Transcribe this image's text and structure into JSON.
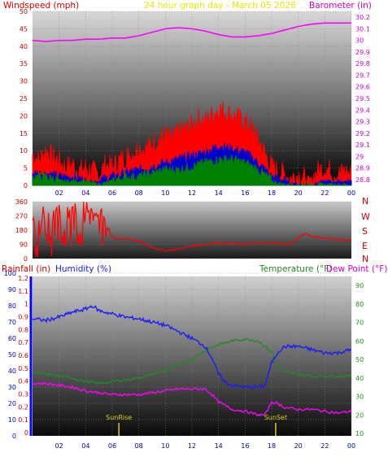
{
  "colors": {
    "windspeed": "#ff0000",
    "gust_mid": "#0000cc",
    "avg": "#008000",
    "barometer": "#ff00ff",
    "winddir": "#ff0000",
    "humidity": "#1a1aff",
    "temperature": "#228b22",
    "dewpoint": "#ff00ff",
    "rainfall": "#0000ff",
    "title": "#ffff00",
    "sun": "#d4d400"
  },
  "chart_data": [
    {
      "type": "line",
      "title": "24 hour graph day - March 05 2026",
      "left_axis_label": "Windspeed (mph)",
      "right_axis_label": "Barometer (in)",
      "x_ticks": [
        "02",
        "04",
        "06",
        "08",
        "10",
        "12",
        "14",
        "16",
        "18",
        "20",
        "22",
        "00"
      ],
      "left_ticks": [
        "0",
        "5",
        "10",
        "15",
        "20",
        "25",
        "30",
        "35",
        "40",
        "45",
        "50"
      ],
      "left_ylim": [
        0,
        50
      ],
      "right_ticks": [
        "28.8",
        "28.9",
        "29",
        "29.1",
        "29.2",
        "29.3",
        "29.4",
        "29.5",
        "29.6",
        "29.7",
        "29.8",
        "29.9",
        "30",
        "30.1",
        "30.2"
      ],
      "right_ylim": [
        28.75,
        30.25
      ],
      "xlim": [
        0,
        24
      ],
      "series": [
        {
          "name": "Windspeed (mph)",
          "axis": "left",
          "x": [
            0,
            0.5,
            1,
            1.5,
            2,
            2.5,
            3,
            3.5,
            4,
            4.5,
            5,
            5.5,
            6,
            6.5,
            7,
            7.5,
            8,
            8.5,
            9,
            9.5,
            10,
            10.5,
            11,
            11.5,
            12,
            12.5,
            13,
            13.5,
            14,
            14.5,
            15,
            15.5,
            16,
            16.5,
            17,
            17.5,
            18,
            18.5,
            19,
            19.5,
            20,
            20.5,
            21,
            21.5,
            22,
            22.5,
            23,
            23.5,
            24
          ],
          "values": [
            8,
            6,
            9,
            7,
            6,
            4,
            5,
            3,
            4,
            3,
            2,
            5,
            4,
            6,
            7,
            8,
            10,
            9,
            11,
            12,
            13,
            12,
            14,
            15,
            16,
            18,
            17,
            19,
            21,
            20,
            19,
            18,
            17,
            15,
            12,
            8,
            4,
            3,
            2,
            1,
            2,
            1,
            1,
            3,
            4,
            3,
            2,
            3,
            2
          ]
        },
        {
          "name": "Gust mid",
          "axis": "left",
          "x": [
            0,
            1,
            2,
            3,
            4,
            5,
            6,
            7,
            8,
            9,
            10,
            11,
            12,
            13,
            14,
            15,
            16,
            17,
            18,
            19,
            20,
            21,
            22,
            23,
            24
          ],
          "values": [
            3,
            3,
            2,
            2,
            1,
            1,
            2,
            3,
            4,
            5,
            6,
            7,
            8,
            9,
            11,
            10,
            9,
            6,
            2,
            1,
            0,
            0,
            1,
            1,
            1
          ]
        },
        {
          "name": "Average wind",
          "axis": "left",
          "x": [
            0,
            1,
            2,
            3,
            4,
            5,
            6,
            7,
            8,
            9,
            10,
            11,
            12,
            13,
            14,
            15,
            16,
            17,
            18,
            19,
            20,
            21,
            22,
            23,
            24
          ],
          "values": [
            2,
            2,
            1,
            1,
            1,
            0,
            1,
            2,
            2,
            3,
            4,
            4,
            5,
            6,
            7,
            7,
            6,
            4,
            1,
            0,
            0,
            0,
            0,
            0,
            0
          ]
        },
        {
          "name": "Barometer (in)",
          "axis": "right",
          "x": [
            0,
            1,
            2,
            3,
            4,
            5,
            6,
            7,
            8,
            9,
            10,
            11,
            12,
            13,
            14,
            15,
            16,
            17,
            18,
            19,
            20,
            21,
            22,
            23,
            24
          ],
          "values": [
            30,
            29.99,
            30,
            30,
            30.01,
            30.01,
            30.02,
            30.02,
            30.04,
            30.07,
            30.1,
            30.11,
            30.1,
            30.08,
            30.05,
            30.03,
            30.03,
            30.04,
            30.06,
            30.09,
            30.12,
            30.14,
            30.15,
            30.15,
            30.15
          ]
        }
      ]
    },
    {
      "type": "line",
      "right_labels": [
        "N",
        "W",
        "S",
        "E",
        "N"
      ],
      "left_ticks": [
        "0",
        "90",
        "180",
        "270",
        "360"
      ],
      "ylim": [
        0,
        360
      ],
      "xlim": [
        0,
        24
      ],
      "series": [
        {
          "name": "Wind direction",
          "x": [
            0,
            0.4,
            0.8,
            1.2,
            1.6,
            2,
            2.4,
            2.8,
            3.2,
            3.6,
            4,
            4.4,
            4.8,
            5.2,
            5.6,
            6,
            6.5,
            7,
            8,
            9,
            10,
            11,
            12,
            13,
            14,
            15,
            16,
            17,
            18,
            18.5,
            19,
            19.5,
            20,
            20.5,
            21,
            22,
            23,
            24
          ],
          "values": [
            320,
            10,
            330,
            40,
            300,
            340,
            20,
            310,
            350,
            30,
            280,
            320,
            260,
            310,
            200,
            140,
            120,
            130,
            110,
            70,
            50,
            60,
            80,
            90,
            100,
            95,
            90,
            100,
            95,
            100,
            90,
            95,
            130,
            160,
            140,
            130,
            120,
            115
          ]
        }
      ]
    },
    {
      "type": "line",
      "rainfall_label": "Rainfall (in)",
      "humidity_label": "Humidity (%)",
      "temperature_label": "Temperature (°F)",
      "dewpoint_label": "Dew Point (°F)",
      "humidity_ticks": [
        "0",
        "10",
        "20",
        "30",
        "40",
        "50",
        "60",
        "70",
        "80",
        "90",
        "100"
      ],
      "rain_ticks": [
        "0",
        "0.1",
        "0.2",
        "0.3",
        "0.4",
        "0.5",
        "0.6",
        "0.7",
        "0.8",
        "0.9",
        "1",
        "1.1",
        "1.2"
      ],
      "temp_ticks": [
        "10",
        "20",
        "30",
        "40",
        "50",
        "60",
        "70",
        "80",
        "90"
      ],
      "x_ticks": [
        "02",
        "04",
        "06",
        "08",
        "10",
        "12",
        "14",
        "16",
        "18",
        "20",
        "22",
        "00"
      ],
      "xlim": [
        0,
        24
      ],
      "humidity_ylim": [
        0,
        100
      ],
      "temp_ylim": [
        10,
        90
      ],
      "annotations": [
        {
          "text": "SunRise",
          "x": 6.5
        },
        {
          "text": "SunSet",
          "x": 18.3
        }
      ],
      "series": [
        {
          "name": "Humidity (%)",
          "axis": "humidity",
          "x": [
            0,
            1,
            2,
            3,
            4,
            4.5,
            5,
            6,
            7,
            8,
            9,
            10,
            11,
            12,
            13,
            13.5,
            14,
            14.5,
            15,
            16,
            17,
            17.5,
            18,
            18.5,
            19,
            20,
            21,
            22,
            23,
            24
          ],
          "values": [
            72,
            71,
            73,
            76,
            78,
            80,
            77,
            75,
            73,
            72,
            70,
            68,
            64,
            60,
            55,
            48,
            38,
            33,
            31,
            30,
            30,
            31,
            45,
            52,
            55,
            55,
            53,
            51,
            51,
            53
          ]
        },
        {
          "name": "Temperature (°F)",
          "axis": "temp",
          "x": [
            0,
            1,
            2,
            3,
            4,
            5,
            6,
            7,
            8,
            9,
            10,
            11,
            12,
            13,
            14,
            15,
            16,
            17,
            18,
            18.5,
            19,
            20,
            21,
            22,
            23,
            24
          ],
          "values": [
            43,
            42,
            41,
            40,
            38,
            37,
            38,
            39,
            40,
            42,
            44,
            47,
            50,
            55,
            58,
            60,
            61,
            60,
            54,
            46,
            43,
            42,
            41,
            41,
            41,
            41
          ]
        },
        {
          "name": "Dew Point (°F)",
          "axis": "temp",
          "x": [
            0,
            1,
            2,
            3,
            4,
            5,
            6,
            7,
            8,
            9,
            10,
            11,
            12,
            13,
            13.5,
            14,
            15,
            16,
            17,
            17.5,
            18,
            18.5,
            19,
            20,
            21,
            22,
            23,
            24
          ],
          "values": [
            37,
            37,
            36,
            35,
            33,
            32,
            31,
            31,
            31,
            32,
            33,
            34,
            34,
            34,
            31,
            27,
            23,
            22,
            20,
            20,
            27,
            26,
            24,
            23,
            23,
            22,
            21,
            22
          ]
        },
        {
          "name": "Rainfall (in)",
          "axis": "rain",
          "x": [
            0,
            24
          ],
          "values": [
            0,
            0
          ]
        }
      ]
    }
  ]
}
